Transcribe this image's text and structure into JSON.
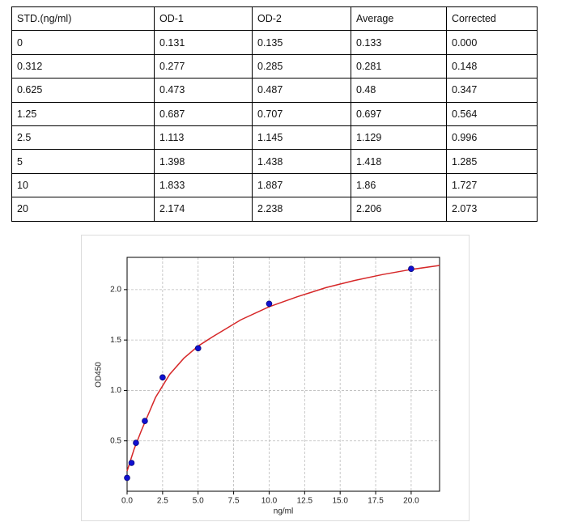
{
  "table": {
    "header": [
      "STD.(ng/ml)",
      "OD-1",
      "OD-2",
      "Average",
      "Corrected"
    ],
    "rows": [
      [
        "0",
        "0.131",
        "0.135",
        "0.133",
        "0.000"
      ],
      [
        "0.312",
        "0.277",
        "0.285",
        "0.281",
        "0.148"
      ],
      [
        "0.625",
        "0.473",
        "0.487",
        "0.48",
        "0.347"
      ],
      [
        "1.25",
        "0.687",
        "0.707",
        "0.697",
        "0.564"
      ],
      [
        "2.5",
        "1.113",
        "1.145",
        "1.129",
        "0.996"
      ],
      [
        "5",
        "1.398",
        "1.438",
        "1.418",
        "1.285"
      ],
      [
        "10",
        "1.833",
        "1.887",
        "1.86",
        "1.727"
      ],
      [
        "20",
        "2.174",
        "2.238",
        "2.206",
        "2.073"
      ]
    ]
  },
  "chart_data": {
    "type": "scatter",
    "x_label": "ng/ml",
    "y_label": "OD450",
    "x": [
      0,
      0.312,
      0.625,
      1.25,
      2.5,
      5,
      10,
      20
    ],
    "values": [
      0.133,
      0.281,
      0.48,
      0.697,
      1.129,
      1.418,
      1.86,
      2.206
    ],
    "color": "#1010d0",
    "fit": {
      "color": "#d62728",
      "x": [
        0,
        0.5,
        1,
        2,
        3,
        4,
        5,
        6,
        8,
        10,
        12,
        14,
        16,
        18,
        20,
        22
      ],
      "values": [
        0.2,
        0.42,
        0.6,
        0.93,
        1.16,
        1.32,
        1.44,
        1.53,
        1.7,
        1.83,
        1.93,
        2.02,
        2.09,
        2.15,
        2.2,
        2.24
      ]
    },
    "xlim": [
      0,
      22
    ],
    "ylim": [
      0,
      2.32
    ],
    "xticks": [
      {
        "value": 0,
        "label": "0.0"
      },
      2.5,
      {
        "value": 5,
        "label": "5.0"
      },
      7.5,
      {
        "value": 10,
        "label": "10.0"
      },
      12.5,
      {
        "value": 15,
        "label": "15.0"
      },
      17.5,
      {
        "value": 20,
        "label": "20.0"
      }
    ],
    "yticks": [
      0.5,
      {
        "value": 1,
        "label": "1.0"
      },
      1.5,
      {
        "value": 2,
        "label": "2.0"
      }
    ],
    "grid": true
  }
}
